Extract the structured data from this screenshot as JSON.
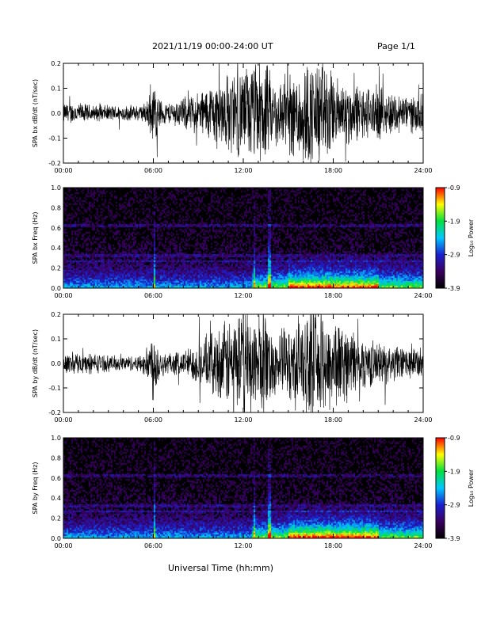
{
  "header": {
    "title": "2021/11/19  00:00-24:00 UT",
    "page": "Page 1/1"
  },
  "footer": {
    "xlabel": "Universal Time (hh:mm)"
  },
  "colors": {
    "trace": "#000000",
    "colormap": [
      "#000000",
      "#3a0060",
      "#1a20d0",
      "#00c8ff",
      "#00e040",
      "#ffff00",
      "#ff0000"
    ]
  },
  "chart_data": [
    {
      "type": "line",
      "ylabel": "SPA bx dB/dt (nT/sec)",
      "x_ticks": [
        "00:00",
        "06:00",
        "12:00",
        "18:00",
        "24:00"
      ],
      "y_ticks": [
        "0.2",
        "0.1",
        "0.0",
        "-0.1",
        "-0.2"
      ],
      "ylim": [
        -0.2,
        0.2
      ],
      "xlim": [
        "00:00",
        "24:00"
      ],
      "envelope": {
        "x_hours": [
          0,
          1,
          2,
          3,
          4,
          5,
          5.5,
          6,
          6.5,
          7,
          8,
          9,
          10,
          11,
          12,
          13,
          13.5,
          14,
          15,
          16,
          17,
          17.5,
          18,
          19,
          20,
          21,
          22,
          23,
          24
        ],
        "amplitude": [
          0.04,
          0.04,
          0.03,
          0.03,
          0.03,
          0.03,
          0.04,
          0.12,
          0.05,
          0.04,
          0.06,
          0.08,
          0.12,
          0.15,
          0.17,
          0.2,
          0.2,
          0.12,
          0.15,
          0.2,
          0.2,
          0.2,
          0.14,
          0.12,
          0.1,
          0.1,
          0.08,
          0.07,
          0.07
        ]
      }
    },
    {
      "type": "heatmap",
      "ylabel": "SPA bx Freq (Hz)",
      "x_ticks": [
        "00:00",
        "06:00",
        "12:00",
        "18:00",
        "24:00"
      ],
      "y_ticks": [
        "1.0",
        "0.8",
        "0.6",
        "0.4",
        "0.2",
        "0.0"
      ],
      "ylim": [
        0,
        1.0
      ],
      "colorbar": {
        "label": "Log₁₀ Power",
        "ticks": [
          "-0.9",
          "-1.9",
          "-2.9",
          "-3.9"
        ],
        "range": [
          -3.9,
          -0.9
        ]
      }
    },
    {
      "type": "line",
      "ylabel": "SPA by dB/dt (nT/sec)",
      "x_ticks": [
        "00:00",
        "06:00",
        "12:00",
        "18:00",
        "24:00"
      ],
      "y_ticks": [
        "0.2",
        "0.1",
        "0.0",
        "-0.1",
        "-0.2"
      ],
      "ylim": [
        -0.2,
        0.2
      ],
      "xlim": [
        "00:00",
        "24:00"
      ],
      "envelope": {
        "x_hours": [
          0,
          1,
          2,
          3,
          4,
          5,
          5.5,
          6,
          6.5,
          7,
          8,
          9,
          10,
          11,
          12,
          13,
          13.5,
          14,
          15,
          16,
          17,
          17.5,
          18,
          19,
          20,
          21,
          22,
          23,
          24
        ],
        "amplitude": [
          0.04,
          0.04,
          0.04,
          0.03,
          0.03,
          0.03,
          0.05,
          0.15,
          0.05,
          0.04,
          0.05,
          0.08,
          0.12,
          0.17,
          0.2,
          0.2,
          0.2,
          0.12,
          0.14,
          0.2,
          0.2,
          0.2,
          0.18,
          0.14,
          0.1,
          0.08,
          0.07,
          0.06,
          0.06
        ]
      }
    },
    {
      "type": "heatmap",
      "ylabel": "SPA by Freq (Hz)",
      "x_ticks": [
        "00:00",
        "06:00",
        "12:00",
        "18:00",
        "24:00"
      ],
      "y_ticks": [
        "1.0",
        "0.8",
        "0.6",
        "0.4",
        "0.2",
        "0.0"
      ],
      "ylim": [
        0,
        1.0
      ],
      "colorbar": {
        "label": "Log₁₀ Power",
        "ticks": [
          "-0.9",
          "-1.9",
          "-2.9",
          "-3.9"
        ],
        "range": [
          -3.9,
          -0.9
        ]
      }
    }
  ]
}
